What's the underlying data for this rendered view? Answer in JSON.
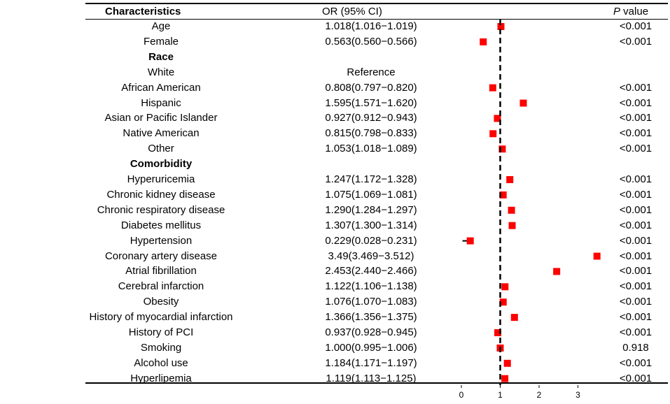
{
  "headers": {
    "characteristics": "Characteristics",
    "or_ci": "OR (95% CI)",
    "p_italic": "P",
    "p_rest": " value"
  },
  "rows": [
    {
      "label": "Age",
      "bold": false,
      "or_text": "1.018(1.016−1.019)",
      "p": "<0.001",
      "or": 1.018,
      "lo": 1.016,
      "hi": 1.019
    },
    {
      "label": "Female",
      "bold": false,
      "or_text": "0.563(0.560−0.566)",
      "p": "<0.001",
      "or": 0.563,
      "lo": 0.56,
      "hi": 0.566
    },
    {
      "label": "Race",
      "bold": true,
      "or_text": "",
      "p": ""
    },
    {
      "label": "White",
      "bold": false,
      "or_text": "Reference",
      "p": ""
    },
    {
      "label": "African American",
      "bold": false,
      "or_text": "0.808(0.797−0.820)",
      "p": "<0.001",
      "or": 0.808,
      "lo": 0.797,
      "hi": 0.82
    },
    {
      "label": "Hispanic",
      "bold": false,
      "or_text": "1.595(1.571−1.620)",
      "p": "<0.001",
      "or": 1.595,
      "lo": 1.571,
      "hi": 1.62
    },
    {
      "label": "Asian or Pacific Islander",
      "bold": false,
      "or_text": "0.927(0.912−0.943)",
      "p": "<0.001",
      "or": 0.927,
      "lo": 0.912,
      "hi": 0.943
    },
    {
      "label": "Native American",
      "bold": false,
      "or_text": "0.815(0.798−0.833)",
      "p": "<0.001",
      "or": 0.815,
      "lo": 0.798,
      "hi": 0.833
    },
    {
      "label": "Other",
      "bold": false,
      "or_text": "1.053(1.018−1.089)",
      "p": "<0.001",
      "or": 1.053,
      "lo": 1.018,
      "hi": 1.089
    },
    {
      "label": "Comorbidity",
      "bold": true,
      "or_text": "",
      "p": ""
    },
    {
      "label": "Hyperuricemia",
      "bold": false,
      "or_text": "1.247(1.172−1.328)",
      "p": "<0.001",
      "or": 1.247,
      "lo": 1.172,
      "hi": 1.328
    },
    {
      "label": "Chronic kidney disease",
      "bold": false,
      "or_text": "1.075(1.069−1.081)",
      "p": "<0.001",
      "or": 1.075,
      "lo": 1.069,
      "hi": 1.081
    },
    {
      "label": "Chronic respiratory disease",
      "bold": false,
      "or_text": "1.290(1.284−1.297)",
      "p": "<0.001",
      "or": 1.29,
      "lo": 1.284,
      "hi": 1.297
    },
    {
      "label": "Diabetes mellitus",
      "bold": false,
      "or_text": "1.307(1.300−1.314)",
      "p": "<0.001",
      "or": 1.307,
      "lo": 1.3,
      "hi": 1.314
    },
    {
      "label": "Hypertension",
      "bold": false,
      "or_text": "0.229(0.028−0.231)",
      "p": "<0.001",
      "or": 0.229,
      "lo": 0.028,
      "hi": 0.231
    },
    {
      "label": "Coronary artery disease",
      "bold": false,
      "or_text": "3.49(3.469−3.512)",
      "p": "<0.001",
      "or": 3.49,
      "lo": 3.469,
      "hi": 3.512
    },
    {
      "label": "Atrial fibrillation",
      "bold": false,
      "or_text": "2.453(2.440−2.466)",
      "p": "<0.001",
      "or": 2.453,
      "lo": 2.44,
      "hi": 2.466
    },
    {
      "label": "Cerebral infarction",
      "bold": false,
      "or_text": "1.122(1.106−1.138)",
      "p": "<0.001",
      "or": 1.122,
      "lo": 1.106,
      "hi": 1.138
    },
    {
      "label": "Obesity",
      "bold": false,
      "or_text": "1.076(1.070−1.083)",
      "p": "<0.001",
      "or": 1.076,
      "lo": 1.07,
      "hi": 1.083
    },
    {
      "label": "History of myocardial infarction",
      "bold": false,
      "or_text": "1.366(1.356−1.375)",
      "p": "<0.001",
      "or": 1.366,
      "lo": 1.356,
      "hi": 1.375
    },
    {
      "label": "History of PCI",
      "bold": false,
      "or_text": "0.937(0.928−0.945)",
      "p": "<0.001",
      "or": 0.937,
      "lo": 0.928,
      "hi": 0.945
    },
    {
      "label": "Smoking",
      "bold": false,
      "or_text": "1.000(0.995−1.006)",
      "p": "0.918",
      "or": 1.0,
      "lo": 0.995,
      "hi": 1.006
    },
    {
      "label": "Alcohol use",
      "bold": false,
      "or_text": "1.184(1.171−1.197)",
      "p": "<0.001",
      "or": 1.184,
      "lo": 1.171,
      "hi": 1.197
    },
    {
      "label": "Hyperlipemia",
      "bold": false,
      "or_text": "1.119(1.113−1.125)",
      "p": "<0.001",
      "or": 1.119,
      "lo": 1.113,
      "hi": 1.125
    }
  ],
  "chart_data": {
    "type": "forest",
    "xaxis_ticks": [
      0,
      1,
      2,
      3
    ],
    "xlim": [
      0,
      3.6
    ],
    "reference_line": 1,
    "marker_color": "#ff0000",
    "series": [
      {
        "name": "OR (95% CI)",
        "points": "rows"
      }
    ]
  }
}
